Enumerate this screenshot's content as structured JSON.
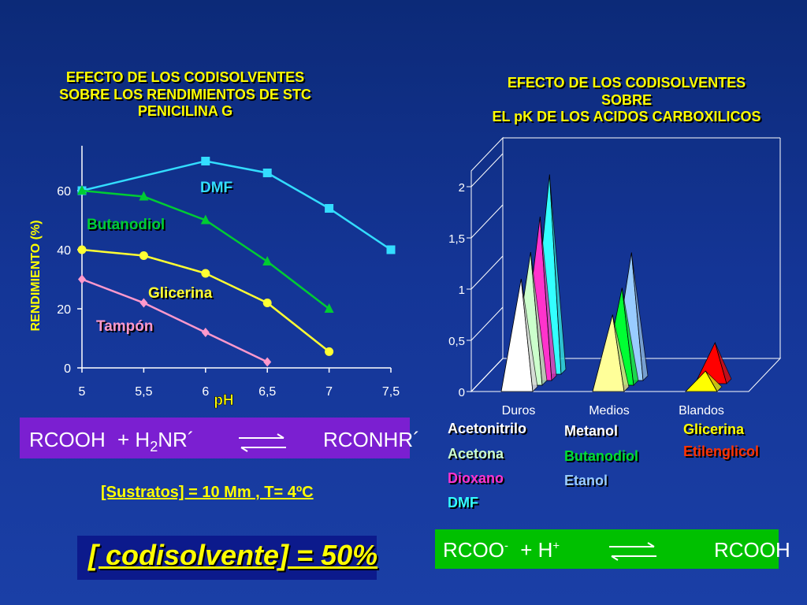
{
  "left_title": [
    "EFECTO DE LOS CODISOLVENTES",
    "SOBRE LOS RENDIMIENTOS DE STC",
    "PENICILINA G"
  ],
  "right_title": [
    "EFECTO DE LOS CODISOLVENTES",
    "SOBRE",
    "EL pK DE LOS ACIDOS CARBOXILICOS"
  ],
  "colors": {
    "dmf": "#33ddff",
    "butanodiol": "#00cc33",
    "glicerina": "#ffff33",
    "tampon": "#ff99cc",
    "yellow": "#ffff00",
    "purple": "#7b1fd1",
    "green": "#00c000",
    "navy": "#0c1a8c"
  },
  "chart_data": [
    {
      "type": "line",
      "x": [
        5,
        5.5,
        6,
        6.5,
        7,
        7.5
      ],
      "xticks": [
        "5",
        "5,5",
        "6",
        "6,5",
        "7",
        "7,5"
      ],
      "yticks": [
        "0",
        "20",
        "40",
        "60"
      ],
      "xlabel": "pH",
      "ylabel": "RENDIMIENTO (%)",
      "xlim": [
        5,
        7.5
      ],
      "ylim": [
        0,
        75
      ],
      "series": [
        {
          "name": "DMF",
          "color": "#33ddff",
          "marker": "square",
          "x": [
            5,
            6,
            6.5,
            7,
            7.5
          ],
          "values": [
            60,
            70,
            66,
            54,
            40
          ]
        },
        {
          "name": "Butanodiol",
          "color": "#00cc33",
          "marker": "triangle",
          "x": [
            5,
            5.5,
            6,
            6.5,
            7
          ],
          "values": [
            60,
            58,
            50,
            36,
            20
          ]
        },
        {
          "name": "Glicerina",
          "color": "#ffff33",
          "marker": "circle",
          "x": [
            5,
            5.5,
            6,
            6.5,
            7
          ],
          "values": [
            40,
            38,
            32,
            22,
            5.5
          ]
        },
        {
          "name": "Tampón",
          "color": "#ff99cc",
          "marker": "diamond",
          "x": [
            5,
            5.5,
            6,
            6.5
          ],
          "values": [
            30,
            22,
            12,
            2
          ]
        }
      ]
    },
    {
      "type": "bar",
      "style": "3d-cone",
      "categories": [
        "Duros",
        "Medios",
        "Blandos"
      ],
      "yticks": [
        "0",
        "0,5",
        "1",
        "1,5",
        "2"
      ],
      "ylim": [
        0,
        2
      ],
      "series": [
        {
          "name": "Acetonitrilo",
          "color": "#ffffff",
          "category": "Duros",
          "value": 1.1
        },
        {
          "name": "Acetona",
          "color": "#ccffcc",
          "category": "Duros",
          "value": 1.3
        },
        {
          "name": "Dioxano",
          "color": "#ff33cc",
          "category": "Duros",
          "value": 1.6
        },
        {
          "name": "DMF",
          "color": "#33ffff",
          "category": "Duros",
          "value": 1.95
        },
        {
          "name": "Metanol",
          "color": "#ffff99",
          "category": "Medios",
          "value": 0.75
        },
        {
          "name": "Butanodiol",
          "color": "#00ff33",
          "category": "Medios",
          "value": 0.95
        },
        {
          "name": "Etanol",
          "color": "#99ccff",
          "category": "Medios",
          "value": 1.25
        },
        {
          "name": "Glicerina",
          "color": "#ffff00",
          "category": "Blandos",
          "value": 0.2
        },
        {
          "name": "Etilenglicol",
          "color": "#ff0000",
          "category": "Blandos",
          "value": 0.4
        }
      ]
    }
  ],
  "labels": {
    "dmf": "DMF",
    "butanodiol": "Butanodiol",
    "glicerina": "Glicerina",
    "tampon": "Tampón"
  },
  "legend": {
    "duros": [
      "Acetonitrilo",
      "Acetona",
      "Dioxano",
      "DMF"
    ],
    "medios": [
      "Metanol",
      "Butanodiol",
      "Etanol"
    ],
    "blandos": [
      "Glicerina",
      "Etilenglicol"
    ]
  },
  "eq1": {
    "left": "RCOOH",
    "plus": "+ H",
    "sub": "2",
    "nr": "NR´",
    "right": "RCONHR´"
  },
  "conditions": "[Sustratos] = 10 Mm , T= 4ºC",
  "codisolvente": "[ codisolvente] = 50%",
  "eq2": {
    "left": "RCOO",
    "sup": "-",
    "plus": "+ H",
    "sup2": "+",
    "right": "RCOOH"
  }
}
